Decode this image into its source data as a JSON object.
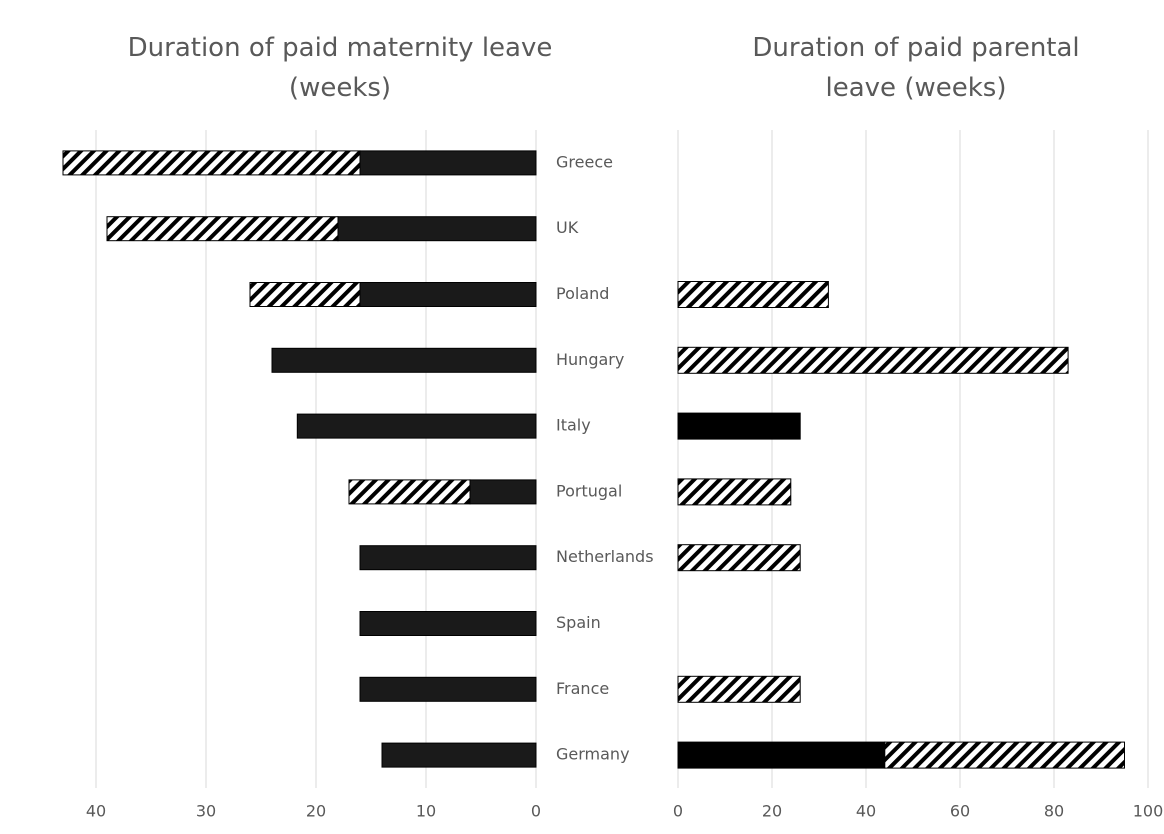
{
  "chart_data": [
    {
      "type": "bar",
      "orientation": "horizontal",
      "title": "Duration of paid maternity leave (weeks)",
      "categories": [
        "Greece",
        "UK",
        "Poland",
        "Hungary",
        "Italy",
        "Portugal",
        "Netherlands",
        "Spain",
        "France",
        "Germany"
      ],
      "series": [
        {
          "color": "#1a1a1a",
          "pattern": "solid",
          "values": [
            16,
            18,
            16,
            24,
            21.7,
            6,
            16,
            16,
            16,
            14
          ]
        },
        {
          "color": "#000000",
          "pattern": "hatch",
          "values": [
            27,
            21,
            10,
            0,
            0,
            11,
            0,
            0,
            0,
            0
          ]
        }
      ],
      "xlim": [
        0,
        45
      ],
      "xticks": [
        0,
        10,
        20,
        30,
        40
      ],
      "x_reversed": true,
      "grid": true
    },
    {
      "type": "bar",
      "orientation": "horizontal",
      "title": "Duration of paid parental leave (weeks)",
      "series": [
        {
          "color": "#000000",
          "pattern": "solid",
          "values": [
            null,
            null,
            0,
            0,
            26,
            0,
            0,
            null,
            0,
            44
          ]
        },
        {
          "color": "#000000",
          "pattern": "hatch",
          "values": [
            null,
            null,
            32,
            83,
            0,
            24,
            26,
            null,
            26,
            51
          ]
        }
      ],
      "xlim": [
        0,
        100
      ],
      "xticks": [
        0,
        20,
        40,
        60,
        80,
        100
      ],
      "x_reversed": false,
      "grid": true
    }
  ]
}
